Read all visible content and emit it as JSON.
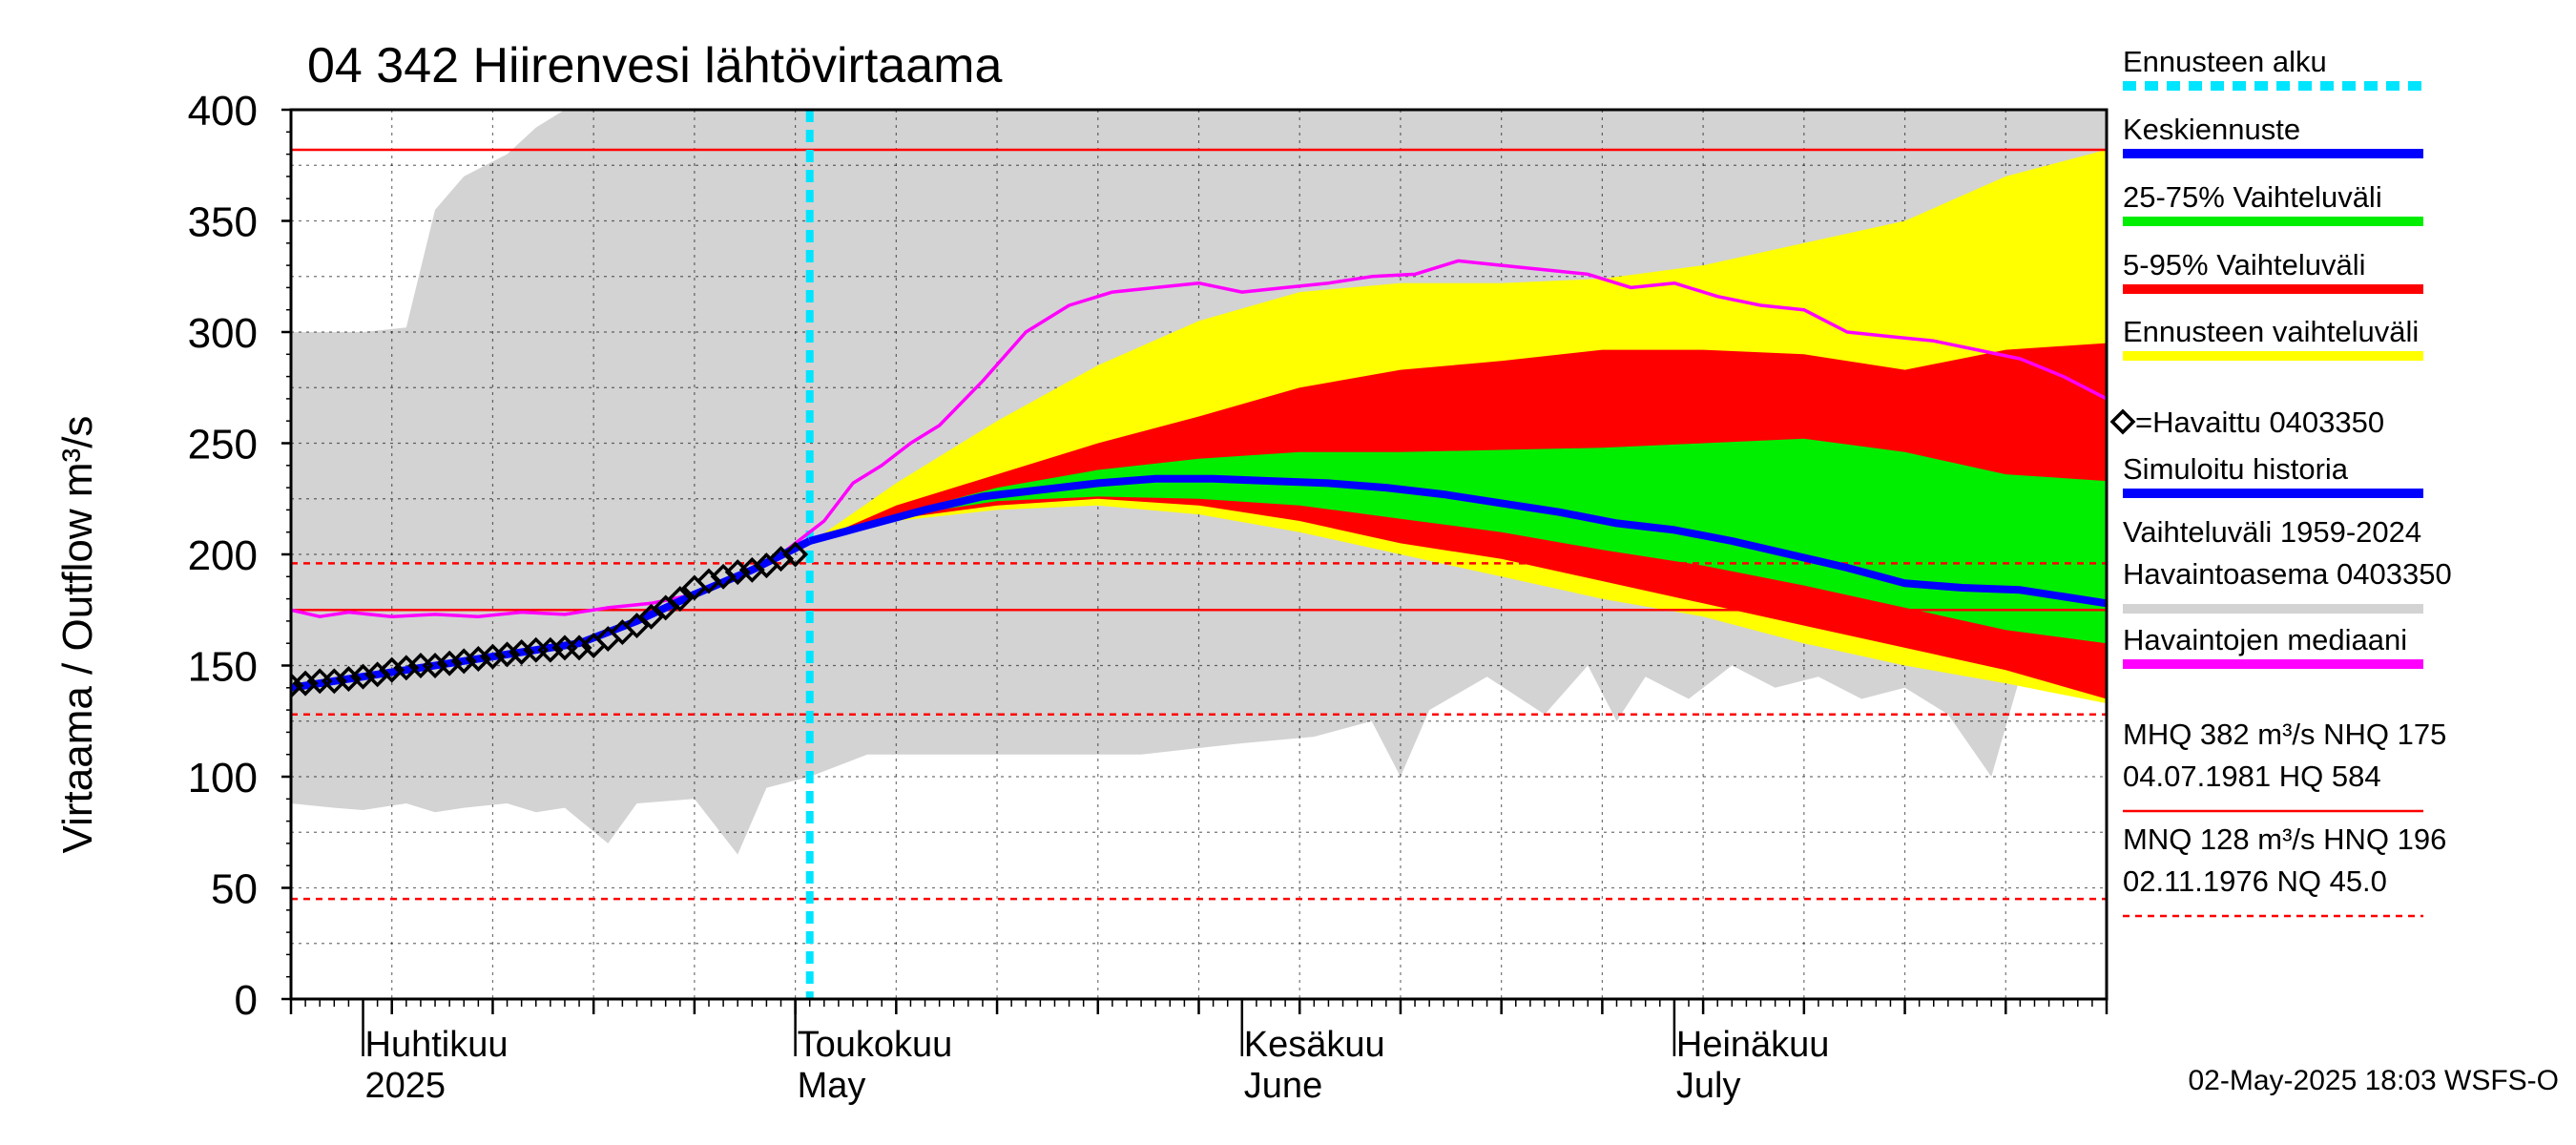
{
  "chart_data": {
    "type": "area",
    "title": "04 342 Hiirenvesi lähtövirtaama",
    "ylabel": "Virtaama / Outflow    m³/s",
    "ylim": [
      0,
      400
    ],
    "yticks": [
      0,
      50,
      100,
      150,
      200,
      250,
      300,
      350,
      400
    ],
    "x_start": "2025-03-27",
    "x_end": "2025-07-31",
    "forecast_start": "2025-05-02",
    "month_labels": [
      {
        "date": "2025-04-01",
        "line1": "Huhtikuu",
        "line2": "2025"
      },
      {
        "date": "2025-05-01",
        "line1": "Toukokuu",
        "line2": "May"
      },
      {
        "date": "2025-06-01",
        "line1": "Kesäkuu",
        "line2": "June"
      },
      {
        "date": "2025-07-01",
        "line1": "Heinäkuu",
        "line2": "July"
      }
    ],
    "reference_lines": [
      {
        "name": "MHQ",
        "value": 382,
        "color": "#ff0000",
        "style": "solid"
      },
      {
        "name": "NHQ",
        "value": 175,
        "color": "#ff0000",
        "style": "solid"
      },
      {
        "name": "HNQ",
        "value": 196,
        "color": "#ff0000",
        "style": "dashed"
      },
      {
        "name": "MNQ",
        "value": 128,
        "color": "#ff0000",
        "style": "dashed"
      },
      {
        "name": "NQ",
        "value": 45,
        "color": "#ff0000",
        "style": "dashed"
      }
    ],
    "history_band": {
      "name": "Vaihteluväli 1959-2024",
      "color": "#d3d3d3",
      "points": [
        {
          "x": "2025-03-27",
          "lo": 88,
          "hi": 300
        },
        {
          "x": "2025-03-30",
          "lo": 86,
          "hi": 300
        },
        {
          "x": "2025-04-01",
          "lo": 85,
          "hi": 300
        },
        {
          "x": "2025-04-04",
          "lo": 88,
          "hi": 302
        },
        {
          "x": "2025-04-06",
          "lo": 84,
          "hi": 355
        },
        {
          "x": "2025-04-08",
          "lo": 86,
          "hi": 370
        },
        {
          "x": "2025-04-11",
          "lo": 88,
          "hi": 380
        },
        {
          "x": "2025-04-13",
          "lo": 84,
          "hi": 392
        },
        {
          "x": "2025-04-15",
          "lo": 86,
          "hi": 400
        },
        {
          "x": "2025-04-18",
          "lo": 70,
          "hi": 400
        },
        {
          "x": "2025-04-20",
          "lo": 88,
          "hi": 400
        },
        {
          "x": "2025-04-24",
          "lo": 90,
          "hi": 400
        },
        {
          "x": "2025-04-27",
          "lo": 65,
          "hi": 400
        },
        {
          "x": "2025-04-29",
          "lo": 95,
          "hi": 400
        },
        {
          "x": "2025-05-02",
          "lo": 100,
          "hi": 400
        },
        {
          "x": "2025-05-06",
          "lo": 110,
          "hi": 400
        },
        {
          "x": "2025-05-15",
          "lo": 110,
          "hi": 400
        },
        {
          "x": "2025-05-25",
          "lo": 110,
          "hi": 400
        },
        {
          "x": "2025-06-01",
          "lo": 115,
          "hi": 400
        },
        {
          "x": "2025-06-06",
          "lo": 118,
          "hi": 400
        },
        {
          "x": "2025-06-10",
          "lo": 125,
          "hi": 400
        },
        {
          "x": "2025-06-12",
          "lo": 100,
          "hi": 400
        },
        {
          "x": "2025-06-14",
          "lo": 130,
          "hi": 400
        },
        {
          "x": "2025-06-18",
          "lo": 145,
          "hi": 400
        },
        {
          "x": "2025-06-22",
          "lo": 128,
          "hi": 400
        },
        {
          "x": "2025-06-25",
          "lo": 150,
          "hi": 400
        },
        {
          "x": "2025-06-27",
          "lo": 125,
          "hi": 400
        },
        {
          "x": "2025-06-29",
          "lo": 145,
          "hi": 400
        },
        {
          "x": "2025-07-02",
          "lo": 135,
          "hi": 400
        },
        {
          "x": "2025-07-05",
          "lo": 150,
          "hi": 400
        },
        {
          "x": "2025-07-08",
          "lo": 140,
          "hi": 400
        },
        {
          "x": "2025-07-11",
          "lo": 145,
          "hi": 400
        },
        {
          "x": "2025-07-14",
          "lo": 135,
          "hi": 400
        },
        {
          "x": "2025-07-17",
          "lo": 140,
          "hi": 400
        },
        {
          "x": "2025-07-20",
          "lo": 128,
          "hi": 400
        },
        {
          "x": "2025-07-23",
          "lo": 100,
          "hi": 400
        },
        {
          "x": "2025-07-25",
          "lo": 145,
          "hi": 400
        },
        {
          "x": "2025-07-28",
          "lo": 150,
          "hi": 400
        },
        {
          "x": "2025-07-31",
          "lo": 148,
          "hi": 400
        }
      ]
    },
    "forecast_bands": [
      {
        "name": "Ennusteen vaihteluväli",
        "color": "#ffff00",
        "points": [
          {
            "x": "2025-05-02",
            "lo": 205,
            "hi": 205
          },
          {
            "x": "2025-05-08",
            "lo": 215,
            "hi": 232
          },
          {
            "x": "2025-05-15",
            "lo": 220,
            "hi": 260
          },
          {
            "x": "2025-05-22",
            "lo": 222,
            "hi": 285
          },
          {
            "x": "2025-05-29",
            "lo": 218,
            "hi": 305
          },
          {
            "x": "2025-06-05",
            "lo": 210,
            "hi": 318
          },
          {
            "x": "2025-06-12",
            "lo": 200,
            "hi": 322
          },
          {
            "x": "2025-06-19",
            "lo": 190,
            "hi": 322
          },
          {
            "x": "2025-06-26",
            "lo": 180,
            "hi": 324
          },
          {
            "x": "2025-07-03",
            "lo": 172,
            "hi": 330
          },
          {
            "x": "2025-07-10",
            "lo": 160,
            "hi": 340
          },
          {
            "x": "2025-07-17",
            "lo": 150,
            "hi": 350
          },
          {
            "x": "2025-07-24",
            "lo": 142,
            "hi": 370
          },
          {
            "x": "2025-07-31",
            "lo": 133,
            "hi": 382
          }
        ]
      },
      {
        "name": "5-95% Vaihteluväli",
        "color": "#ff0000",
        "points": [
          {
            "x": "2025-05-02",
            "lo": 205,
            "hi": 205
          },
          {
            "x": "2025-05-08",
            "lo": 216,
            "hi": 222
          },
          {
            "x": "2025-05-15",
            "lo": 222,
            "hi": 236
          },
          {
            "x": "2025-05-22",
            "lo": 225,
            "hi": 250
          },
          {
            "x": "2025-05-29",
            "lo": 222,
            "hi": 262
          },
          {
            "x": "2025-06-05",
            "lo": 215,
            "hi": 275
          },
          {
            "x": "2025-06-12",
            "lo": 205,
            "hi": 283
          },
          {
            "x": "2025-06-19",
            "lo": 198,
            "hi": 287
          },
          {
            "x": "2025-06-26",
            "lo": 188,
            "hi": 292
          },
          {
            "x": "2025-07-03",
            "lo": 178,
            "hi": 292
          },
          {
            "x": "2025-07-10",
            "lo": 168,
            "hi": 290
          },
          {
            "x": "2025-07-17",
            "lo": 158,
            "hi": 283
          },
          {
            "x": "2025-07-24",
            "lo": 148,
            "hi": 292
          },
          {
            "x": "2025-07-31",
            "lo": 135,
            "hi": 295
          }
        ]
      },
      {
        "name": "25-75% Vaihteluväli",
        "color": "#00ee00",
        "points": [
          {
            "x": "2025-05-02",
            "lo": 205,
            "hi": 205
          },
          {
            "x": "2025-05-08",
            "lo": 217,
            "hi": 218
          },
          {
            "x": "2025-05-15",
            "lo": 224,
            "hi": 230
          },
          {
            "x": "2025-05-22",
            "lo": 226,
            "hi": 238
          },
          {
            "x": "2025-05-29",
            "lo": 225,
            "hi": 243
          },
          {
            "x": "2025-06-05",
            "lo": 222,
            "hi": 246
          },
          {
            "x": "2025-06-12",
            "lo": 216,
            "hi": 246
          },
          {
            "x": "2025-06-19",
            "lo": 210,
            "hi": 247
          },
          {
            "x": "2025-06-26",
            "lo": 202,
            "hi": 248
          },
          {
            "x": "2025-07-03",
            "lo": 195,
            "hi": 250
          },
          {
            "x": "2025-07-10",
            "lo": 186,
            "hi": 252
          },
          {
            "x": "2025-07-17",
            "lo": 176,
            "hi": 246
          },
          {
            "x": "2025-07-24",
            "lo": 166,
            "hi": 236
          },
          {
            "x": "2025-07-31",
            "lo": 160,
            "hi": 233
          }
        ]
      }
    ],
    "series": [
      {
        "name": "Havaintojen mediaani",
        "color": "#ff00ff",
        "x": [
          "2025-03-27",
          "2025-03-29",
          "2025-03-31",
          "2025-04-03",
          "2025-04-06",
          "2025-04-09",
          "2025-04-12",
          "2025-04-15",
          "2025-04-18",
          "2025-04-21",
          "2025-04-24",
          "2025-04-27",
          "2025-04-30",
          "2025-05-03",
          "2025-05-05",
          "2025-05-07",
          "2025-05-09",
          "2025-05-11",
          "2025-05-14",
          "2025-05-17",
          "2025-05-20",
          "2025-05-23",
          "2025-05-26",
          "2025-05-29",
          "2025-06-01",
          "2025-06-04",
          "2025-06-07",
          "2025-06-10",
          "2025-06-13",
          "2025-06-16",
          "2025-06-19",
          "2025-06-22",
          "2025-06-25",
          "2025-06-28",
          "2025-07-01",
          "2025-07-04",
          "2025-07-07",
          "2025-07-10",
          "2025-07-13",
          "2025-07-16",
          "2025-07-19",
          "2025-07-22",
          "2025-07-25",
          "2025-07-28",
          "2025-07-31"
        ],
        "values": [
          175,
          172,
          174,
          172,
          173,
          172,
          174,
          173,
          176,
          178,
          182,
          190,
          200,
          215,
          232,
          240,
          250,
          258,
          278,
          300,
          312,
          318,
          320,
          322,
          318,
          320,
          322,
          325,
          326,
          332,
          330,
          328,
          326,
          320,
          322,
          316,
          312,
          310,
          300,
          298,
          296,
          292,
          288,
          280,
          270
        ]
      },
      {
        "name": "Keskiennuste",
        "color": "#0000ff",
        "x": [
          "2025-05-02",
          "2025-05-06",
          "2025-05-10",
          "2025-05-14",
          "2025-05-18",
          "2025-05-22",
          "2025-05-26",
          "2025-05-30",
          "2025-06-03",
          "2025-06-07",
          "2025-06-11",
          "2025-06-15",
          "2025-06-19",
          "2025-06-23",
          "2025-06-27",
          "2025-07-01",
          "2025-07-05",
          "2025-07-09",
          "2025-07-13",
          "2025-07-17",
          "2025-07-21",
          "2025-07-25",
          "2025-07-31"
        ],
        "values": [
          206,
          213,
          220,
          226,
          229,
          232,
          234,
          234,
          233,
          232,
          230,
          227,
          223,
          219,
          214,
          211,
          206,
          200,
          194,
          187,
          185,
          184,
          178
        ]
      },
      {
        "name": "Simuloitu historia",
        "color": "#0000ff",
        "x": [
          "2025-03-27",
          "2025-03-31",
          "2025-04-04",
          "2025-04-08",
          "2025-04-12",
          "2025-04-16",
          "2025-04-20",
          "2025-04-24",
          "2025-04-28",
          "2025-05-02"
        ],
        "values": [
          140,
          144,
          148,
          152,
          156,
          160,
          170,
          182,
          193,
          206
        ]
      }
    ],
    "observed": {
      "name": "Havaittu 0403350",
      "marker": "diamond",
      "x": [
        "2025-03-27",
        "2025-03-28",
        "2025-03-29",
        "2025-03-30",
        "2025-03-31",
        "2025-04-01",
        "2025-04-02",
        "2025-04-03",
        "2025-04-04",
        "2025-04-05",
        "2025-04-06",
        "2025-04-07",
        "2025-04-08",
        "2025-04-09",
        "2025-04-10",
        "2025-04-11",
        "2025-04-12",
        "2025-04-13",
        "2025-04-14",
        "2025-04-15",
        "2025-04-16",
        "2025-04-17",
        "2025-04-18",
        "2025-04-19",
        "2025-04-20",
        "2025-04-21",
        "2025-04-22",
        "2025-04-23",
        "2025-04-24",
        "2025-04-25",
        "2025-04-26",
        "2025-04-27",
        "2025-04-28",
        "2025-04-29",
        "2025-04-30",
        "2025-05-01"
      ],
      "values": [
        141,
        142,
        143,
        143,
        144,
        145,
        146,
        148,
        149,
        150,
        150,
        151,
        152,
        153,
        154,
        155,
        156,
        157,
        157,
        158,
        158,
        159,
        162,
        165,
        168,
        172,
        176,
        180,
        185,
        188,
        190,
        192,
        193,
        195,
        198,
        200
      ]
    },
    "legend": [
      {
        "label": "Ennusteen alku",
        "color": "#00e5ff",
        "style": "dotted"
      },
      {
        "label": "Keskiennuste",
        "color": "#0000ff",
        "style": "solid"
      },
      {
        "label": "25-75% Vaihteluväli",
        "color": "#00ee00",
        "style": "solid"
      },
      {
        "label": "5-95% Vaihteluväli",
        "color": "#ff0000",
        "style": "solid"
      },
      {
        "label": "Ennusteen vaihteluväli",
        "color": "#ffff00",
        "style": "solid"
      },
      {
        "label": "=Havaittu 0403350",
        "color": "#000000",
        "style": "marker"
      },
      {
        "label": "Simuloitu historia",
        "color": "#0000ff",
        "style": "solid"
      },
      {
        "label": "Vaihteluväli 1959-2024",
        "label2": " Havaintoasema 0403350",
        "color": "#d3d3d3",
        "style": "solid"
      },
      {
        "label": "Havaintojen mediaani",
        "color": "#ff00ff",
        "style": "solid"
      },
      {
        "label": "MHQ  382 m³/s NHQ  175",
        "label2": "04.07.1981 HQ  584",
        "color": "#ff0000",
        "style": "solid"
      },
      {
        "label": "MNQ  128 m³/s HNQ  196",
        "label2": "02.11.1976 NQ 45.0",
        "color": "#ff0000",
        "style": "dashed"
      }
    ],
    "footer": "02-May-2025 18:03 WSFS-O",
    "grid": true
  }
}
